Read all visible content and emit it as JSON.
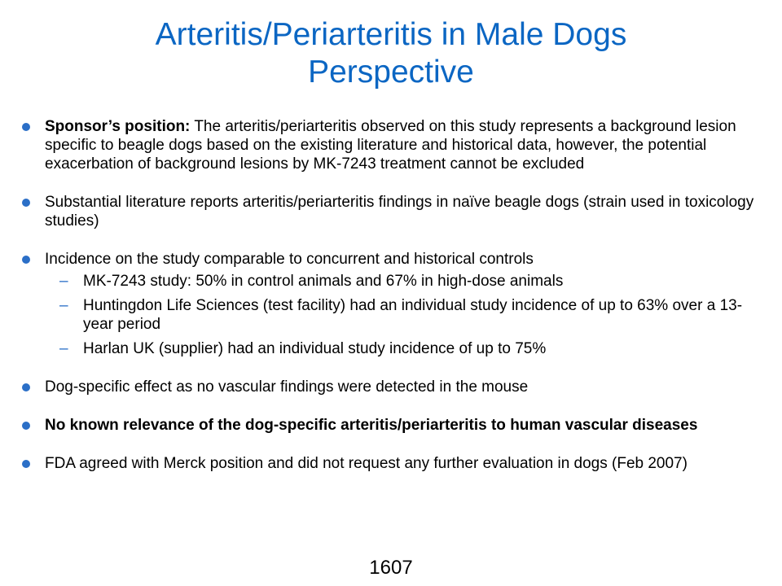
{
  "title": {
    "line1": "Arteritis/Periarteritis in Male Dogs",
    "line2": "Perspective"
  },
  "bullets": [
    {
      "lead": "Sponsor’s position:",
      "text": " The arteritis/periarteritis observed on this study represents a background lesion specific to beagle dogs based on the existing literature and historical data, however, the potential exacerbation of background lesions by MK-7243 treatment cannot be excluded"
    },
    {
      "text": "Substantial literature reports arteritis/periarteritis findings in naïve beagle dogs (strain used in toxicology studies)"
    },
    {
      "text": "Incidence on the study comparable to concurrent and historical controls",
      "subitems": [
        "MK-7243 study: 50% in control animals and 67% in high-dose animals",
        "Huntingdon Life Sciences (test facility) had an individual study incidence of up to 63% over a 13-year period",
        "Harlan UK (supplier) had an individual study incidence of up to 75%"
      ]
    },
    {
      "text": "Dog-specific effect as no vascular findings were detected in the mouse"
    },
    {
      "text": "No known relevance of the dog-specific arteritis/periarteritis to human vascular diseases"
    },
    {
      "text": "FDA agreed with Merck position and did not request any further evaluation in dogs (Feb 2007)"
    }
  ],
  "page_number": "1607",
  "colors": {
    "title": "#0b66c3",
    "bullet": "#2b6fc7"
  }
}
